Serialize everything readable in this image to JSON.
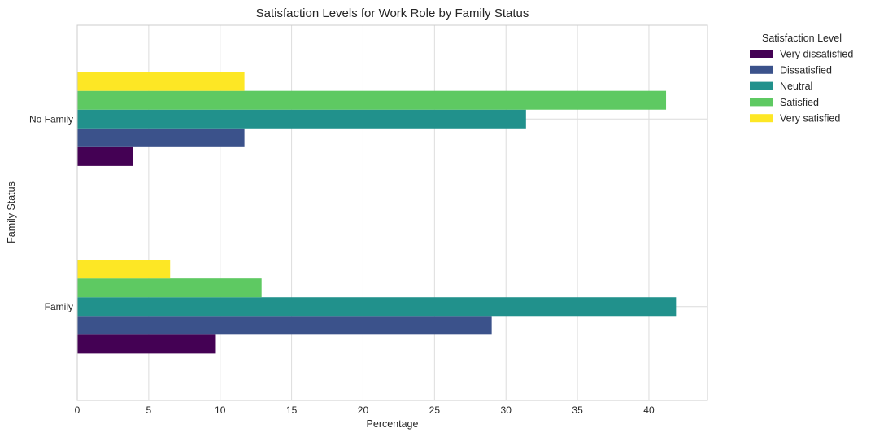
{
  "chart_data": {
    "type": "bar",
    "orientation": "horizontal",
    "title": "Satisfaction Levels for Work Role by Family Status",
    "xlabel": "Percentage",
    "ylabel": "Family Status",
    "categories": [
      "Family",
      "No Family"
    ],
    "xlim": [
      0,
      44.1
    ],
    "xticks": [
      0,
      5,
      10,
      15,
      20,
      25,
      30,
      35,
      40
    ],
    "grid": true,
    "legend": {
      "title": "Satisfaction Level",
      "placement": "outside-top-right"
    },
    "series": [
      {
        "name": "Very dissatisfied",
        "color": "#440154",
        "values": [
          9.7,
          3.9
        ]
      },
      {
        "name": "Dissatisfied",
        "color": "#3b528b",
        "values": [
          29.0,
          11.7
        ]
      },
      {
        "name": "Neutral",
        "color": "#21918c",
        "values": [
          41.9,
          31.4
        ]
      },
      {
        "name": "Satisfied",
        "color": "#5ec962",
        "values": [
          12.9,
          41.2
        ]
      },
      {
        "name": "Very satisfied",
        "color": "#fde725",
        "values": [
          6.5,
          11.7
        ]
      }
    ]
  }
}
